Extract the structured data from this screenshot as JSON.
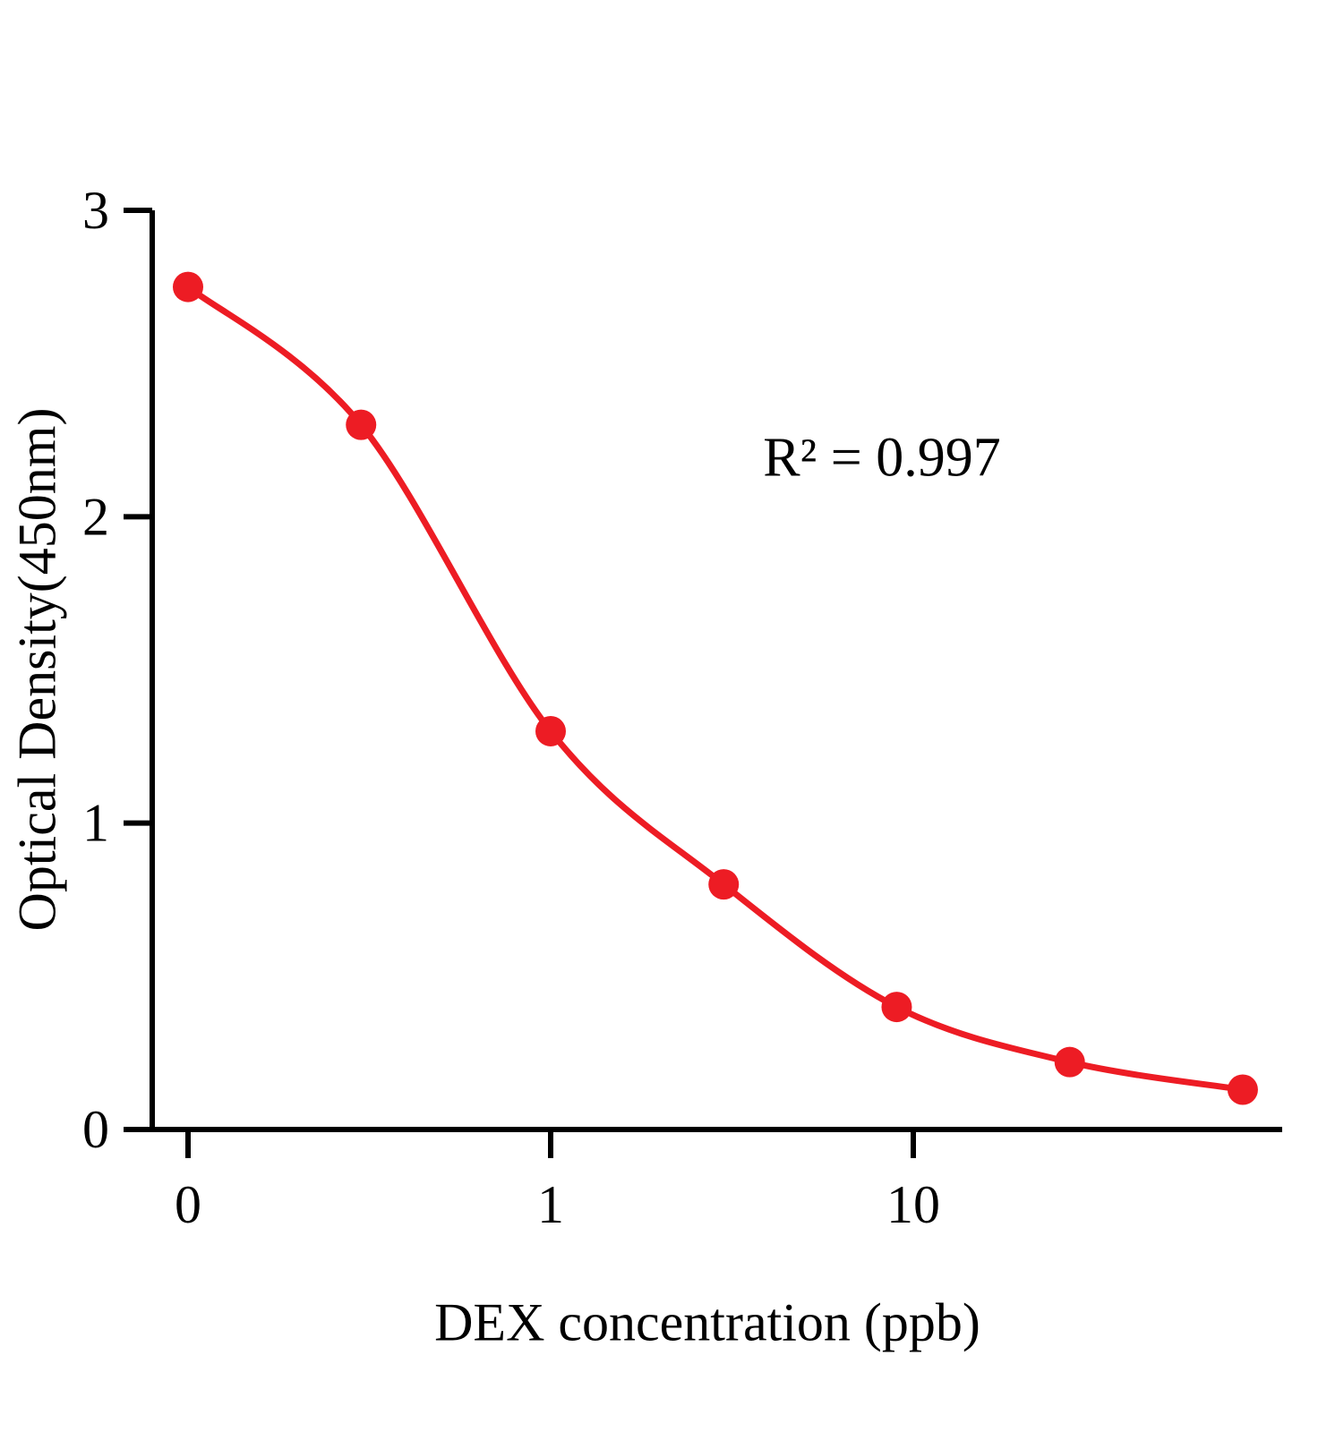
{
  "chart_data": {
    "type": "scatter",
    "title": "",
    "xlabel": "DEX concentration (ppb)",
    "ylabel": "Optical Density(450nm)",
    "annotation": "R² = 0.997",
    "x_scale": "log",
    "x": [
      0,
      0.3,
      1,
      3,
      9,
      27,
      81
    ],
    "y": [
      2.75,
      2.3,
      1.3,
      0.8,
      0.4,
      0.22,
      0.13
    ],
    "x_ticks": [
      0,
      1,
      10
    ],
    "x_tick_labels": [
      "0",
      "1",
      "10"
    ],
    "y_ticks": [
      0,
      1,
      2,
      3
    ],
    "y_tick_labels": [
      "0",
      "1",
      "2",
      "3"
    ],
    "ylim": [
      0,
      3
    ],
    "grid": false,
    "legend": "none",
    "curve": "sigmoidal fit through points",
    "point_color": "#ED1C24",
    "line_color": "#ED1C24",
    "axis_color": "#000000"
  }
}
